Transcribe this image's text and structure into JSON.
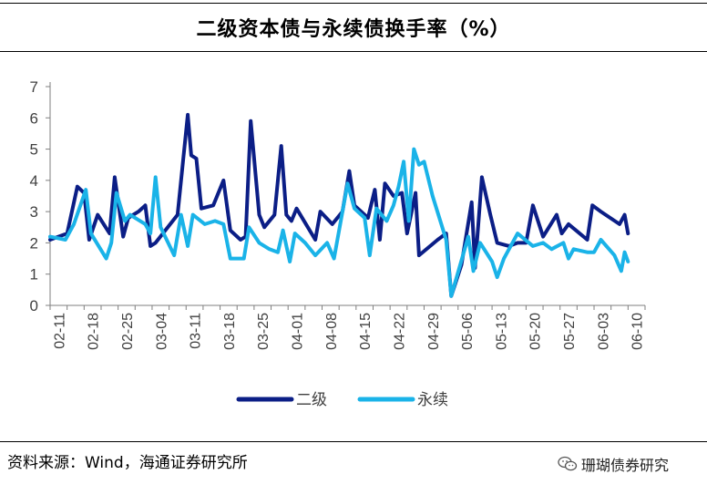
{
  "title": "二级资本债与永续债换手率（%）",
  "source": "资料来源：Wind，海通证券研究所",
  "watermark": "珊瑚债券研究",
  "chart_data": {
    "type": "line",
    "ylim": [
      0,
      7
    ],
    "yticks": [
      0,
      1,
      2,
      3,
      4,
      5,
      6,
      7
    ],
    "xticks": [
      "02-11",
      "02-18",
      "02-25",
      "03-04",
      "03-11",
      "03-18",
      "03-25",
      "04-01",
      "04-08",
      "04-15",
      "04-22",
      "04-29",
      "05-06",
      "05-13",
      "05-20",
      "05-27",
      "06-03",
      "06-10"
    ],
    "legend_position": "bottom",
    "series": [
      {
        "name": "二级",
        "color": "#0b1e86",
        "points": [
          [
            0,
            2.1
          ],
          [
            1,
            2.3
          ],
          [
            1.6,
            3.8
          ],
          [
            2,
            3.6
          ],
          [
            2.3,
            2.1
          ],
          [
            2.8,
            2.9
          ],
          [
            3.5,
            2.3
          ],
          [
            3.8,
            4.1
          ],
          [
            4.3,
            2.2
          ],
          [
            4.6,
            2.8
          ],
          [
            5.2,
            3.0
          ],
          [
            5.6,
            3.2
          ],
          [
            5.9,
            1.9
          ],
          [
            6.2,
            2.0
          ],
          [
            7.5,
            2.9
          ],
          [
            8.1,
            6.1
          ],
          [
            8.3,
            4.8
          ],
          [
            8.6,
            4.7
          ],
          [
            8.9,
            3.1
          ],
          [
            9.6,
            3.2
          ],
          [
            10.2,
            4.0
          ],
          [
            10.6,
            2.4
          ],
          [
            11.2,
            2.1
          ],
          [
            11.5,
            2.2
          ],
          [
            11.8,
            5.9
          ],
          [
            12.3,
            2.9
          ],
          [
            12.6,
            2.5
          ],
          [
            13.2,
            2.9
          ],
          [
            13.6,
            5.1
          ],
          [
            13.9,
            2.9
          ],
          [
            14.2,
            2.7
          ],
          [
            14.5,
            3.1
          ],
          [
            15.6,
            2.1
          ],
          [
            15.9,
            3.0
          ],
          [
            16.6,
            2.6
          ],
          [
            16.9,
            2.8
          ],
          [
            17.2,
            3.0
          ],
          [
            17.6,
            4.3
          ],
          [
            17.9,
            3.2
          ],
          [
            18.3,
            3.0
          ],
          [
            18.7,
            2.8
          ],
          [
            19.1,
            3.7
          ],
          [
            19.4,
            2.1
          ],
          [
            19.7,
            3.9
          ],
          [
            20.2,
            3.5
          ],
          [
            20.7,
            3.6
          ],
          [
            21.0,
            2.3
          ],
          [
            21.5,
            3.6
          ],
          [
            21.7,
            1.6
          ],
          [
            22.8,
            2.1
          ],
          [
            23.3,
            2.3
          ],
          [
            23.6,
            0.3
          ],
          [
            24.2,
            1.3
          ],
          [
            24.8,
            3.3
          ],
          [
            25.0,
            1.2
          ],
          [
            25.4,
            4.1
          ],
          [
            25.9,
            2.9
          ],
          [
            26.3,
            2.0
          ],
          [
            27.0,
            1.9
          ],
          [
            27.5,
            2.0
          ],
          [
            28.0,
            2.0
          ],
          [
            28.4,
            3.2
          ],
          [
            29.0,
            2.2
          ],
          [
            29.8,
            2.9
          ],
          [
            30.1,
            2.3
          ],
          [
            30.5,
            2.6
          ],
          [
            31.6,
            2.1
          ],
          [
            31.9,
            3.2
          ],
          [
            32.4,
            3.0
          ],
          [
            33.5,
            2.6
          ],
          [
            33.8,
            2.9
          ],
          [
            34.0,
            2.3
          ]
        ]
      },
      {
        "name": "永续",
        "color": "#1ab3e8",
        "points": [
          [
            0,
            2.2
          ],
          [
            0.9,
            2.1
          ],
          [
            1.4,
            2.6
          ],
          [
            2.1,
            3.7
          ],
          [
            2.4,
            2.3
          ],
          [
            3.3,
            1.5
          ],
          [
            3.6,
            2.0
          ],
          [
            3.9,
            3.6
          ],
          [
            4.4,
            2.7
          ],
          [
            4.7,
            2.9
          ],
          [
            5.6,
            2.6
          ],
          [
            5.9,
            2.3
          ],
          [
            6.2,
            4.1
          ],
          [
            6.5,
            2.5
          ],
          [
            7.3,
            1.6
          ],
          [
            7.7,
            2.9
          ],
          [
            8.1,
            1.9
          ],
          [
            8.4,
            2.9
          ],
          [
            9.1,
            2.6
          ],
          [
            9.7,
            2.7
          ],
          [
            10.2,
            2.6
          ],
          [
            10.6,
            1.5
          ],
          [
            11.4,
            1.5
          ],
          [
            11.7,
            2.5
          ],
          [
            12.3,
            2.0
          ],
          [
            12.9,
            1.8
          ],
          [
            13.4,
            1.7
          ],
          [
            13.7,
            2.4
          ],
          [
            14.1,
            1.4
          ],
          [
            14.4,
            2.3
          ],
          [
            15.0,
            2.0
          ],
          [
            15.6,
            1.6
          ],
          [
            16.3,
            2.0
          ],
          [
            16.7,
            1.5
          ],
          [
            17.5,
            3.9
          ],
          [
            17.9,
            3.1
          ],
          [
            18.5,
            2.8
          ],
          [
            18.8,
            1.6
          ],
          [
            19.2,
            3.1
          ],
          [
            19.8,
            2.7
          ],
          [
            20.2,
            3.2
          ],
          [
            20.5,
            3.8
          ],
          [
            20.8,
            4.6
          ],
          [
            21.1,
            2.7
          ],
          [
            21.4,
            5.0
          ],
          [
            21.7,
            4.5
          ],
          [
            22.0,
            4.6
          ],
          [
            22.5,
            3.5
          ],
          [
            23.3,
            2.1
          ],
          [
            23.6,
            0.3
          ],
          [
            24.6,
            2.2
          ],
          [
            24.9,
            1.1
          ],
          [
            25.3,
            2.0
          ],
          [
            26.0,
            1.4
          ],
          [
            26.3,
            0.9
          ],
          [
            26.7,
            1.5
          ],
          [
            27.5,
            2.3
          ],
          [
            28.4,
            1.9
          ],
          [
            29.0,
            2.0
          ],
          [
            29.5,
            1.8
          ],
          [
            30.2,
            2.0
          ],
          [
            30.5,
            1.5
          ],
          [
            30.8,
            1.8
          ],
          [
            31.6,
            1.7
          ],
          [
            32.0,
            1.7
          ],
          [
            32.4,
            2.1
          ],
          [
            33.2,
            1.6
          ],
          [
            33.6,
            1.1
          ],
          [
            33.8,
            1.7
          ],
          [
            34.0,
            1.4
          ]
        ]
      }
    ]
  }
}
